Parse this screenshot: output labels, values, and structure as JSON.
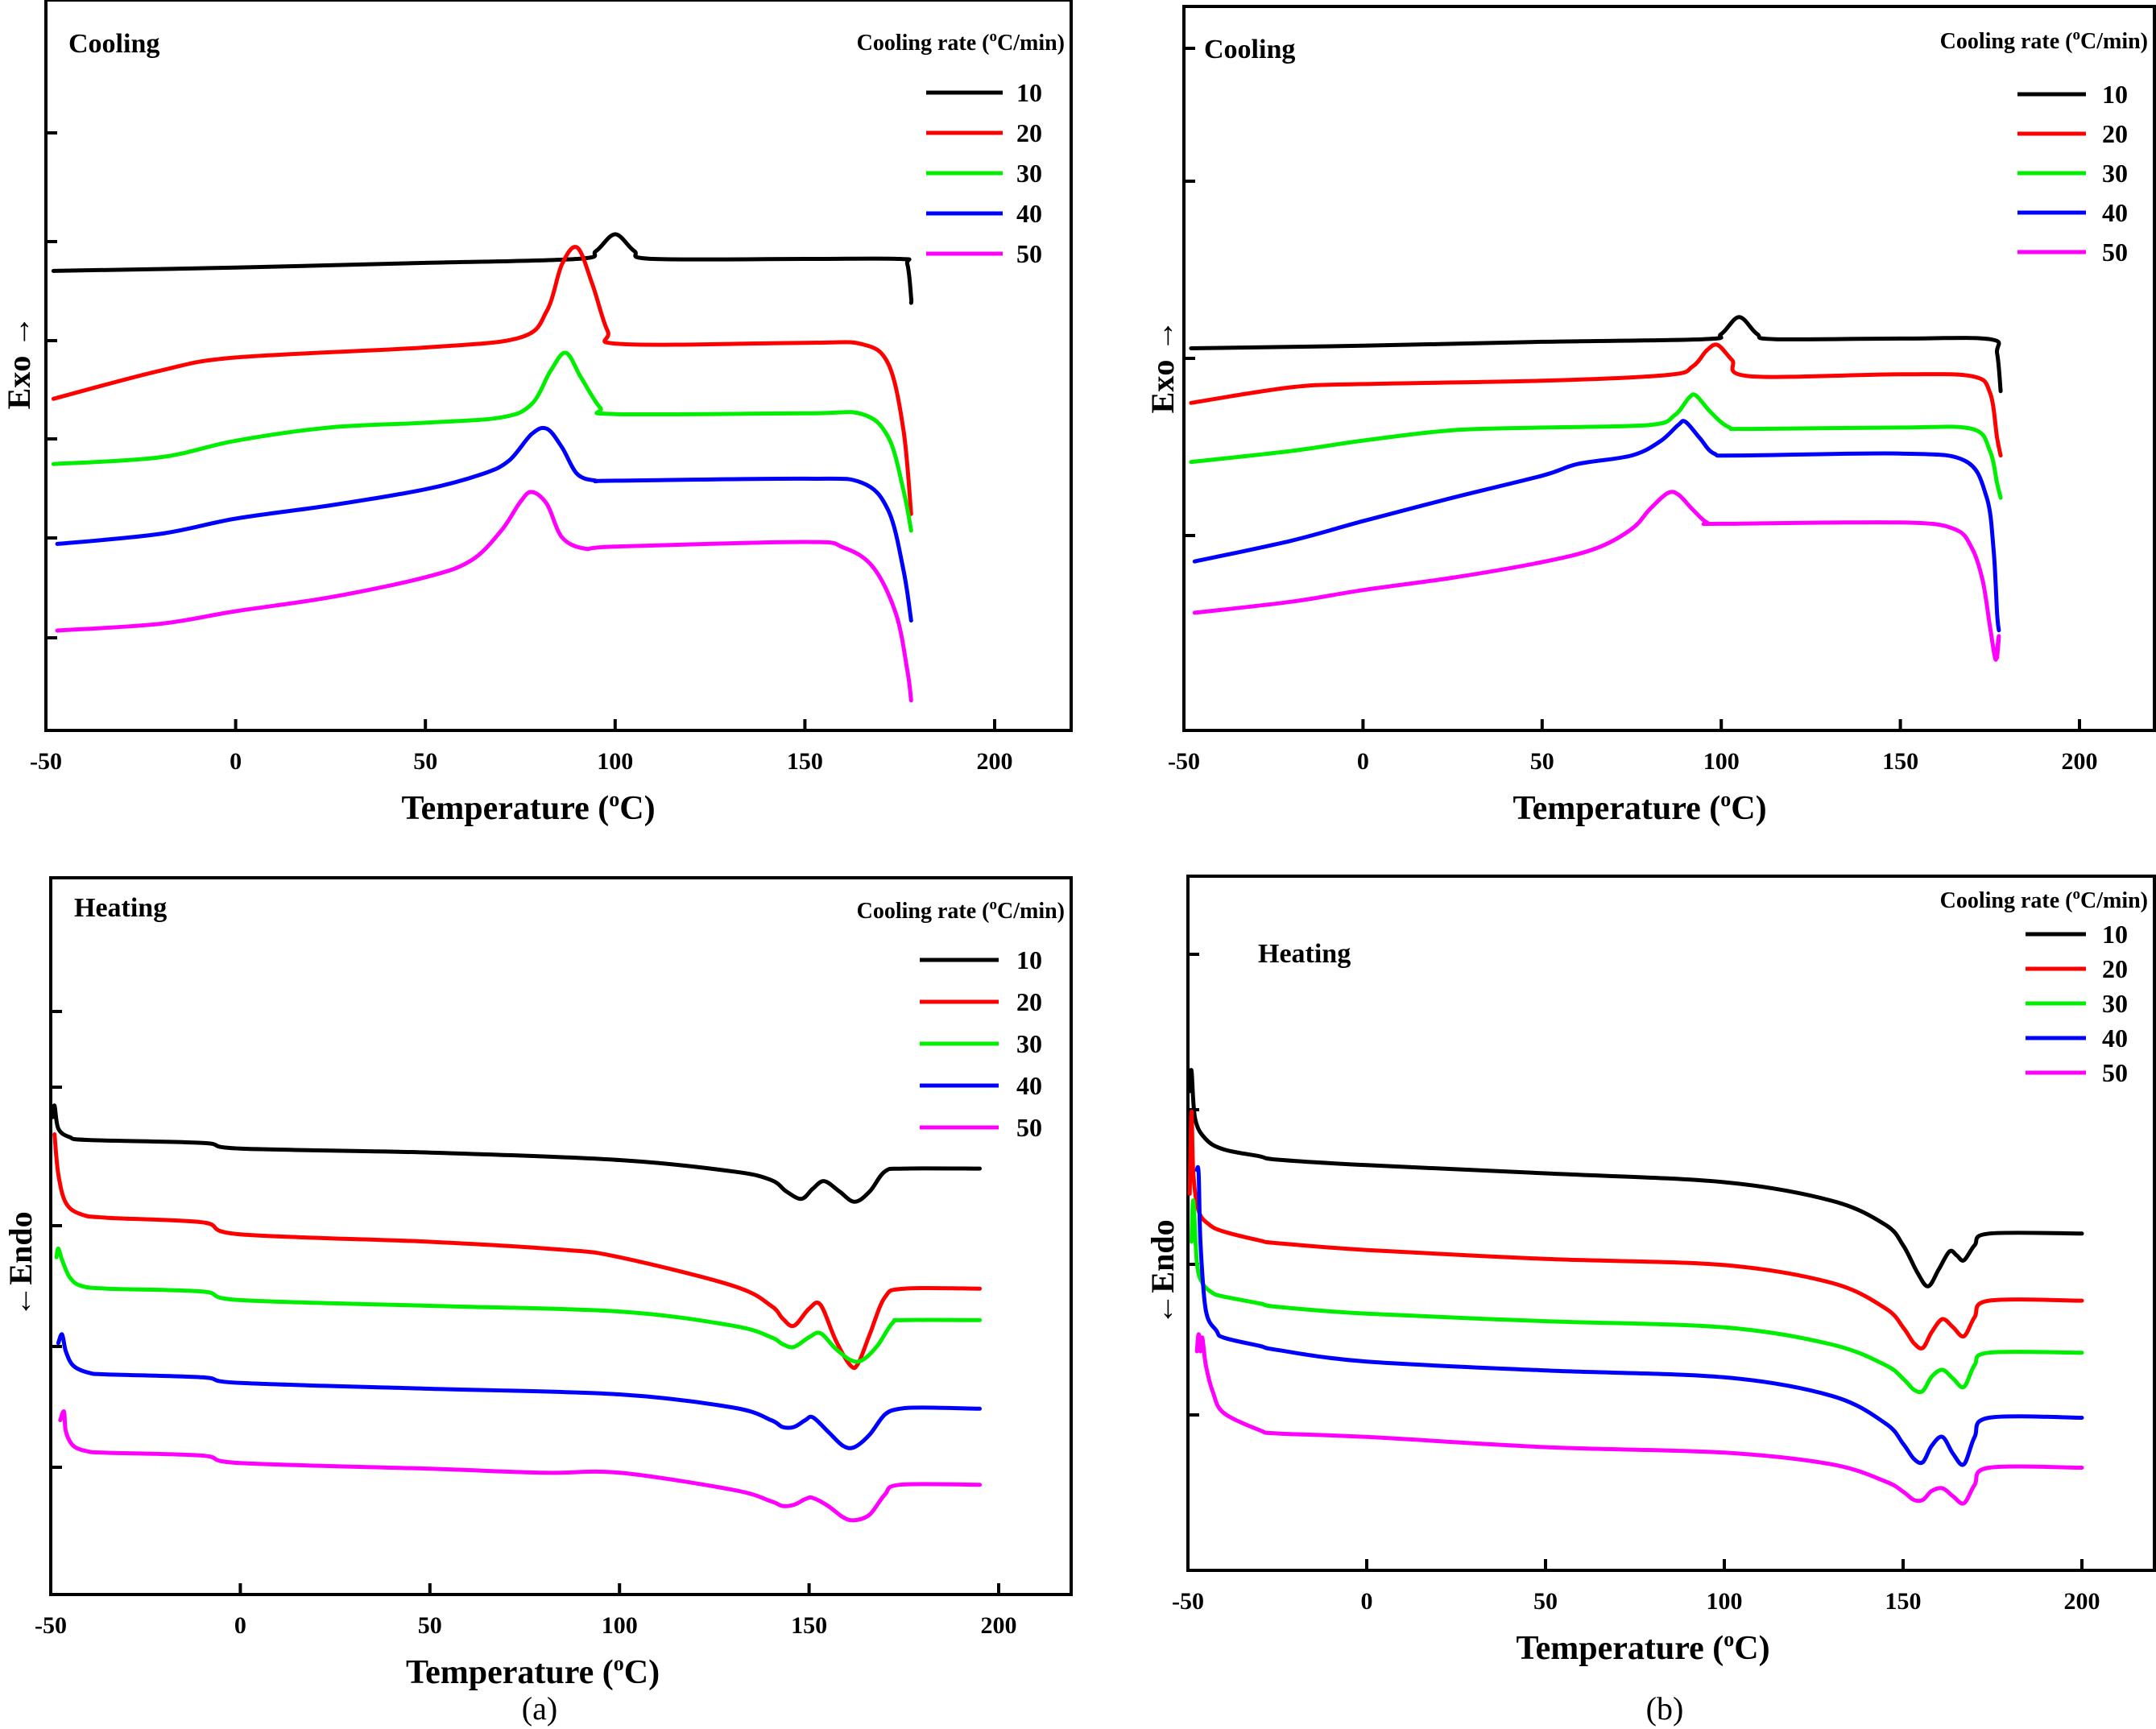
{
  "captions": [
    "(a)",
    "(b)"
  ],
  "legend": {
    "title": "Cooling rate (°C/min)",
    "title_prefix": "Cooling rate (",
    "title_sup": "o",
    "title_suffix": "C/min)",
    "entries": [
      {
        "label": "10",
        "color": "#000000"
      },
      {
        "label": "20",
        "color": "#ff0000"
      },
      {
        "label": "30",
        "color": "#00ee00"
      },
      {
        "label": "40",
        "color": "#0000ff"
      },
      {
        "label": "50",
        "color": "#ff00ff"
      }
    ]
  },
  "chart_data": [
    {
      "id": "a-cooling",
      "type": "line",
      "panel": "(a)",
      "mode_label": "Cooling",
      "title": "",
      "xlabel": "Temperature (°C)",
      "xlabel_prefix": "Temperature (",
      "xlabel_sup": "o",
      "xlabel_suffix": "C)",
      "ylabel": "Exo →",
      "xlim": [
        -50,
        220
      ],
      "xticks": [
        -50,
        0,
        50,
        100,
        150,
        200
      ],
      "ylim": [
        0,
        100
      ],
      "grid": false,
      "legend_position": "top-right",
      "series": [
        {
          "name": "10",
          "color": "#000000",
          "x": [
            -48,
            0,
            50,
            90,
            95,
            100,
            105,
            110,
            150,
            175,
            177,
            178,
            178
          ],
          "y": [
            69,
            69.5,
            70.2,
            70.8,
            72,
            74.5,
            72,
            70.8,
            70.8,
            70.8,
            70,
            65,
            64.2
          ]
        },
        {
          "name": "20",
          "color": "#ff0000",
          "x": [
            -48,
            -20,
            0,
            50,
            75,
            82,
            86,
            90,
            94,
            98,
            102,
            150,
            165,
            172,
            176,
            178
          ],
          "y": [
            49.8,
            54,
            56,
            57.5,
            59,
            63,
            70,
            72.5,
            67,
            60,
            58,
            58.2,
            58,
            55,
            45,
            32.5
          ]
        },
        {
          "name": "30",
          "color": "#00ee00",
          "x": [
            -48,
            -20,
            0,
            25,
            50,
            70,
            78,
            83,
            87,
            91,
            96,
            100,
            150,
            165,
            172,
            176,
            178
          ],
          "y": [
            40,
            41,
            43.5,
            45.5,
            46.2,
            47,
            49,
            54,
            56.7,
            53,
            48.5,
            47.5,
            47.6,
            47.5,
            44,
            36,
            30
          ]
        },
        {
          "name": "40",
          "color": "#0000ff",
          "x": [
            -47,
            -20,
            0,
            25,
            50,
            65,
            72,
            78,
            82,
            86,
            90,
            95,
            100,
            150,
            165,
            172,
            176,
            178
          ],
          "y": [
            28,
            29.5,
            31.8,
            33.8,
            36.2,
            38.5,
            40.5,
            44.5,
            45.3,
            42.5,
            38.5,
            37.5,
            37.5,
            37.8,
            37.2,
            33,
            24,
            16.5
          ]
        },
        {
          "name": "50",
          "color": "#ff00ff",
          "x": [
            -47,
            -20,
            0,
            25,
            50,
            62,
            70,
            75,
            78,
            82,
            86,
            92,
            100,
            150,
            160,
            168,
            174,
            177,
            178
          ],
          "y": [
            15,
            16,
            17.9,
            20,
            23,
            25.5,
            30,
            34.3,
            35.8,
            34,
            29,
            27.3,
            27.6,
            28.3,
            27.5,
            24.5,
            17.5,
            9,
            4.5
          ]
        }
      ]
    },
    {
      "id": "b-cooling",
      "type": "line",
      "panel": "(b)",
      "mode_label": "Cooling",
      "title": "",
      "xlabel": "Temperature (°C)",
      "xlabel_prefix": "Temperature (",
      "xlabel_sup": "o",
      "xlabel_suffix": "C)",
      "ylabel": "Exo →",
      "xlim": [
        -50,
        220
      ],
      "xticks": [
        -50,
        0,
        50,
        100,
        150,
        200
      ],
      "ylim": [
        0,
        100
      ],
      "grid": false,
      "legend_position": "top-right",
      "series": [
        {
          "name": "10",
          "color": "#000000",
          "x": [
            -48,
            0,
            50,
            95,
            100,
            105,
            110,
            115,
            150,
            175,
            177,
            178
          ],
          "y": [
            58.8,
            59.2,
            59.8,
            60.2,
            61,
            63.6,
            61,
            60.2,
            60.3,
            60.2,
            58,
            52.2
          ]
        },
        {
          "name": "20",
          "color": "#ff0000",
          "x": [
            -48,
            -20,
            0,
            50,
            85,
            92,
            96,
            99,
            103,
            108,
            150,
            170,
            175,
            177,
            178
          ],
          "y": [
            50.4,
            52.8,
            53.3,
            53.8,
            54.7,
            56,
            58.5,
            59.3,
            57,
            54.5,
            54.8,
            54.5,
            52,
            45,
            42.3
          ]
        },
        {
          "name": "30",
          "color": "#00ee00",
          "x": [
            -48,
            -20,
            0,
            25,
            50,
            80,
            87,
            91,
            93,
            97,
            102,
            108,
            150,
            170,
            175,
            177,
            178
          ],
          "y": [
            41.3,
            43,
            44.6,
            46.2,
            46.6,
            47,
            48.5,
            51.2,
            51.5,
            49,
            46.7,
            46.4,
            46.6,
            46.4,
            43,
            38,
            35.8
          ]
        },
        {
          "name": "40",
          "color": "#0000ff",
          "x": [
            -47,
            -20,
            0,
            25,
            50,
            60,
            75,
            83,
            88,
            90,
            94,
            98,
            105,
            150,
            168,
            174,
            176,
            177,
            177.5
          ],
          "y": [
            26,
            29.2,
            32.2,
            35.8,
            39.2,
            41,
            42.3,
            44.5,
            47,
            47.5,
            45,
            42.6,
            42.3,
            42.6,
            41.5,
            36,
            28,
            18,
            15.4
          ]
        },
        {
          "name": "50",
          "color": "#ff00ff",
          "x": [
            -47,
            -20,
            0,
            25,
            50,
            65,
            75,
            80,
            85,
            88,
            92,
            96,
            100,
            150,
            165,
            170,
            173,
            175,
            176.5,
            177,
            177.5,
            177
          ],
          "y": [
            18.1,
            19.8,
            21.6,
            23.5,
            25.9,
            28,
            31,
            34,
            36.5,
            36.3,
            34,
            32,
            31.8,
            32,
            31,
            28,
            23,
            16,
            11,
            12.5,
            14.5,
            11.2
          ]
        }
      ]
    },
    {
      "id": "a-heating",
      "type": "line",
      "panel": "(a)",
      "mode_label": "Heating",
      "title": "",
      "xlabel": "Temperature (°C)",
      "xlabel_prefix": "Temperature (",
      "xlabel_sup": "o",
      "xlabel_suffix": "C)",
      "ylabel": "←Endo",
      "xlim": [
        -50,
        220
      ],
      "xticks": [
        -50,
        0,
        50,
        100,
        150,
        200
      ],
      "ylim": [
        0,
        100
      ],
      "grid": false,
      "legend_position": "top-right",
      "series": [
        {
          "name": "10",
          "color": "#000000",
          "x": [
            -49.5,
            -49,
            -48,
            -45,
            -40,
            -10,
            0,
            50,
            100,
            130,
            140,
            144,
            148,
            151,
            154,
            158,
            162,
            166,
            170,
            175,
            195
          ],
          "y": [
            68,
            70,
            66,
            64.5,
            64,
            63.5,
            62.5,
            61.8,
            60.5,
            58.5,
            57,
            55,
            53.7,
            55.5,
            56.8,
            55,
            53.2,
            55,
            58.5,
            59,
            59
          ]
        },
        {
          "name": "20",
          "color": "#ff0000",
          "x": [
            -49,
            -48,
            -46,
            -42,
            -35,
            -10,
            0,
            50,
            85,
            100,
            130,
            140,
            143,
            146,
            150,
            153,
            157,
            161,
            163,
            166,
            170,
            175,
            195
          ],
          "y": [
            65,
            58,
            53,
            51,
            50.4,
            49.6,
            47.5,
            46.2,
            44.8,
            43.5,
            38.5,
            35,
            32.8,
            31.5,
            34.5,
            35.2,
            29,
            24.5,
            25,
            30,
            36.5,
            38,
            38
          ]
        },
        {
          "name": "30",
          "color": "#00ee00",
          "x": [
            -48.5,
            -48,
            -47,
            -45,
            -42,
            -35,
            -10,
            0,
            50,
            100,
            130,
            140,
            143,
            146,
            150,
            153,
            157,
            161,
            164,
            168,
            172,
            175,
            195
          ],
          "y": [
            43.5,
            45,
            43,
            40,
            38.5,
            38,
            37.5,
            36,
            35,
            34,
            31.5,
            29.5,
            28.3,
            27.8,
            29.5,
            30.2,
            27.5,
            25.5,
            25.5,
            28,
            32,
            32.5,
            32.5
          ]
        },
        {
          "name": "40",
          "color": "#0000ff",
          "x": [
            -48,
            -47,
            -46,
            -44,
            -40,
            -35,
            -10,
            0,
            50,
            100,
            130,
            140,
            143,
            146,
            149,
            151,
            155,
            159,
            162,
            166,
            170,
            174,
            180,
            195
          ],
          "y": [
            28.5,
            30,
            27,
            24.5,
            23.3,
            23,
            22.5,
            21.5,
            20.5,
            19.5,
            17.2,
            15,
            13.8,
            13.8,
            15,
            15.5,
            13,
            10.5,
            10.3,
            12.5,
            16,
            17,
            17.2,
            17
          ]
        },
        {
          "name": "50",
          "color": "#ff00ff",
          "x": [
            -47.5,
            -46.5,
            -46,
            -44,
            -40,
            -35,
            -10,
            0,
            50,
            80,
            100,
            130,
            140,
            143,
            146,
            149,
            151,
            155,
            159,
            162,
            166,
            170,
            174,
            195
          ],
          "y": [
            15,
            16.5,
            13,
            10.5,
            9.5,
            9.3,
            8.8,
            7.5,
            6.5,
            5.8,
            5.8,
            2.8,
            0.8,
            0,
            0.2,
            1.2,
            1.4,
            0,
            -2,
            -2.5,
            -1.5,
            2,
            3.7,
            3.7
          ]
        }
      ]
    },
    {
      "id": "b-heating",
      "type": "line",
      "panel": "(b)",
      "mode_label": "Heating",
      "title": "",
      "xlabel": "Temperature (°C)",
      "xlabel_prefix": "Temperature (",
      "xlabel_sup": "o",
      "xlabel_suffix": "C)",
      "ylabel": "←Endo",
      "xlim": [
        -50,
        220
      ],
      "xticks": [
        -50,
        0,
        50,
        100,
        150,
        200
      ],
      "ylim": [
        0,
        100
      ],
      "grid": false,
      "legend_position": "top-right",
      "series": [
        {
          "name": "10",
          "color": "#000000",
          "x": [
            -49.5,
            -49,
            -48,
            -45,
            -40,
            -30,
            -25,
            0,
            50,
            100,
            130,
            145,
            150,
            154,
            157,
            160,
            163,
            165,
            167,
            170,
            174,
            200
          ],
          "y": [
            70,
            73,
            66,
            63,
            61.5,
            60.5,
            60,
            59.2,
            58,
            56.7,
            54,
            50.5,
            47.5,
            43.5,
            41.5,
            44,
            46.6,
            46,
            45.3,
            47.5,
            49.2,
            49.2
          ]
        },
        {
          "name": "20",
          "color": "#ff0000",
          "x": [
            -49.5,
            -49,
            -48.5,
            -47,
            -44,
            -40,
            -30,
            -25,
            0,
            50,
            100,
            130,
            145,
            150,
            153,
            155.5,
            158,
            161,
            164,
            167,
            170,
            174,
            200
          ],
          "y": [
            55,
            67,
            58,
            52.5,
            50.5,
            49.5,
            48.2,
            47.8,
            46.8,
            45.5,
            44.6,
            42,
            38.3,
            35.5,
            33.2,
            32.5,
            34.8,
            36.7,
            35.5,
            34.2,
            37,
            39.4,
            39.4
          ]
        },
        {
          "name": "30",
          "color": "#00ee00",
          "x": [
            -49,
            -48.5,
            -47.5,
            -46,
            -43,
            -40,
            -30,
            -25,
            0,
            50,
            100,
            130,
            145,
            150,
            153,
            155.5,
            158,
            161,
            164,
            167,
            170,
            174,
            200
          ],
          "y": [
            48,
            54,
            45,
            42,
            40.5,
            40,
            39,
            38.5,
            37.5,
            36.4,
            35.5,
            33,
            30,
            28,
            26.4,
            26.2,
            28.3,
            29.3,
            28,
            26.8,
            30,
            31.8,
            31.8
          ]
        },
        {
          "name": "40",
          "color": "#0000ff",
          "x": [
            -47.5,
            -47,
            -46.5,
            -45,
            -42,
            -40,
            -30,
            -25,
            0,
            50,
            100,
            130,
            145,
            150,
            153,
            155.5,
            158,
            161,
            164,
            167,
            170,
            174,
            200
          ],
          "y": [
            58.5,
            58,
            48,
            38,
            35,
            34,
            32.8,
            32.2,
            30.5,
            29.2,
            28.2,
            25.5,
            21.5,
            18.5,
            16.3,
            15.8,
            18.2,
            19.5,
            17,
            15.5,
            19.5,
            22.3,
            22.3
          ]
        },
        {
          "name": "50",
          "color": "#ff00ff",
          "x": [
            -47.5,
            -47,
            -46.5,
            -46,
            -45,
            -43,
            -40,
            -30,
            -25,
            0,
            50,
            100,
            130,
            145,
            150,
            153,
            155.5,
            158,
            161,
            164,
            167,
            170,
            174,
            200
          ],
          "y": [
            32,
            34.5,
            32,
            34,
            30,
            26,
            23,
            20.5,
            20,
            19.5,
            18,
            17.2,
            15.5,
            13,
            11.5,
            10.3,
            10.3,
            11.6,
            12,
            10.8,
            9.8,
            12.5,
            15,
            15
          ]
        }
      ]
    }
  ]
}
